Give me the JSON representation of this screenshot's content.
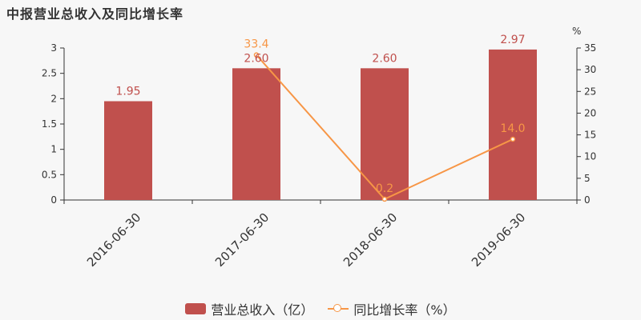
{
  "chart_data": {
    "type": "bar",
    "title": "中报营业总收入及同比增长率",
    "categories": [
      "2016-06-30",
      "2017-06-30",
      "2018-06-30",
      "2019-06-30"
    ],
    "series": [
      {
        "name": "营业总收入（亿）",
        "type": "bar",
        "axis": "left",
        "color": "#c0504d",
        "values": [
          1.95,
          2.6,
          2.6,
          2.97
        ],
        "labels": [
          "1.95",
          "2.60",
          "2.60",
          "2.97"
        ]
      },
      {
        "name": "同比增长率（%）",
        "type": "line",
        "axis": "right",
        "color": "#f79646",
        "values": [
          null,
          33.4,
          0.2,
          14.0
        ],
        "labels": [
          "",
          "33.4",
          "0.2",
          "14.0"
        ]
      }
    ],
    "y_left": {
      "min": 0,
      "max": 3,
      "ticks": [
        "0",
        "0.5",
        "1",
        "1.5",
        "2",
        "2.5",
        "3"
      ]
    },
    "y_right": {
      "min": 0,
      "max": 35,
      "unit": "%",
      "ticks": [
        "0",
        "5",
        "10",
        "15",
        "20",
        "25",
        "30",
        "35"
      ]
    },
    "legend_position": "bottom-center",
    "grid": false
  }
}
